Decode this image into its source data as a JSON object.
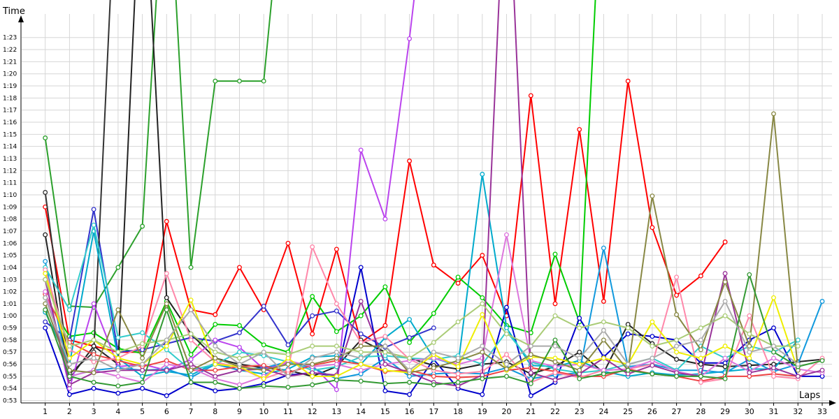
{
  "chart_data": {
    "type": "line",
    "xlabel": "Laps",
    "ylabel": "Time",
    "x_ticks": [
      "1",
      "2",
      "3",
      "4",
      "5",
      "6",
      "7",
      "8",
      "9",
      "10",
      "11",
      "12",
      "13",
      "14",
      "15",
      "16",
      "17",
      "18",
      "19",
      "20",
      "21",
      "22",
      "23",
      "24",
      "25",
      "26",
      "27",
      "28",
      "29",
      "30",
      "31",
      "32",
      "33"
    ],
    "y_ticks": [
      {
        "label": "0:53",
        "value": 53
      },
      {
        "label": "0:54",
        "value": 54
      },
      {
        "label": "0:55",
        "value": 55
      },
      {
        "label": "0:56",
        "value": 56
      },
      {
        "label": "0:57",
        "value": 57
      },
      {
        "label": "0:58",
        "value": 58
      },
      {
        "label": "0:59",
        "value": 59
      },
      {
        "label": "1:00",
        "value": 60
      },
      {
        "label": "1:01",
        "value": 61
      },
      {
        "label": "1:02",
        "value": 62
      },
      {
        "label": "1:03",
        "value": 63
      },
      {
        "label": "1:04",
        "value": 64
      },
      {
        "label": "1:05",
        "value": 65
      },
      {
        "label": "1:06",
        "value": 66
      },
      {
        "label": "1:07",
        "value": 67
      },
      {
        "label": "1:08",
        "value": 68
      },
      {
        "label": "1:09",
        "value": 69
      },
      {
        "label": "1:10",
        "value": 70
      },
      {
        "label": "1:11",
        "value": 71
      },
      {
        "label": "1:12",
        "value": 72
      },
      {
        "label": "1:13",
        "value": 73
      },
      {
        "label": "1:14",
        "value": 74
      },
      {
        "label": "1:15",
        "value": 75
      },
      {
        "label": "1:16",
        "value": 76
      },
      {
        "label": "1:17",
        "value": 77
      },
      {
        "label": "1:18",
        "value": 78
      },
      {
        "label": "1:19",
        "value": 79
      },
      {
        "label": "1:20",
        "value": 80
      },
      {
        "label": "1:21",
        "value": 81
      },
      {
        "label": "1:22",
        "value": 82
      },
      {
        "label": "1:23",
        "value": 83
      }
    ],
    "xlim": [
      0.03,
      33
    ],
    "ylim": [
      52.8,
      86.1
    ],
    "grid": true,
    "series": [
      {
        "color": "#ff0000",
        "values": [
          69.0,
          58.0,
          57.5,
          57.0,
          57.0,
          67.8,
          60.5,
          60.1,
          64.0,
          60.5,
          66.0,
          58.5,
          65.5,
          57.8,
          59.2,
          72.8,
          64.2,
          62.7,
          65.0,
          60.0,
          78.2,
          61.0,
          75.4,
          61.2,
          79.4,
          67.3,
          61.7,
          63.3,
          66.1,
          null,
          null,
          null,
          null
        ]
      },
      {
        "color": "#2ca02c",
        "values": [
          74.7,
          60.8,
          60.7,
          64.0,
          67.4,
          100,
          64.0,
          79.4,
          79.4,
          79.4,
          100,
          null,
          null,
          null,
          null,
          null,
          null,
          null,
          null,
          null,
          null,
          null,
          null,
          null,
          null,
          null,
          null,
          null,
          null,
          null,
          null,
          null,
          null
        ]
      },
      {
        "color": "#00cc00",
        "values": [
          61.5,
          58.3,
          58.6,
          57.3,
          56.9,
          61.2,
          56.8,
          59.3,
          59.2,
          57.6,
          57.0,
          61.6,
          58.7,
          60.0,
          62.4,
          57.8,
          60.2,
          63.2,
          61.5,
          59.2,
          58.6,
          65.1,
          59.5,
          100,
          null,
          null,
          null,
          null,
          null,
          null,
          null,
          null,
          null
        ]
      },
      {
        "color": "#3333cc",
        "values": [
          59.5,
          58.0,
          68.8,
          57.0,
          57.2,
          57.7,
          58.2,
          57.9,
          58.6,
          60.8,
          57.6,
          60.0,
          60.4,
          58.5,
          57.4,
          58.2,
          59.0,
          null,
          null,
          null,
          null,
          null,
          null,
          null,
          null,
          null,
          null,
          null,
          null,
          null,
          null,
          null,
          null
        ]
      },
      {
        "color": "#0000cc",
        "values": [
          59.0,
          53.5,
          54.0,
          53.6,
          54.0,
          53.4,
          54.5,
          53.8,
          54.0,
          54.4,
          55.1,
          55.3,
          55.0,
          64.0,
          53.8,
          53.5,
          56.4,
          54.0,
          53.5,
          60.7,
          53.4,
          54.5,
          59.8,
          56.6,
          58.5,
          58.3,
          58.0,
          56.1,
          56.1,
          58.0,
          59.0,
          55.0,
          55.0
        ]
      },
      {
        "color": "#333333",
        "values": [
          70.2,
          55.2,
          57.0,
          100,
          null,
          null,
          null,
          null,
          null,
          null,
          null,
          null,
          null,
          null,
          null,
          null,
          null,
          null,
          null,
          null,
          null,
          null,
          null,
          null,
          null,
          null,
          null,
          null,
          null,
          null,
          null,
          null,
          null
        ]
      },
      {
        "color": "#222222",
        "values": [
          66.7,
          54.8,
          57.5,
          56.0,
          100,
          61.5,
          58.5,
          56.5,
          56.0,
          55.7,
          55.5,
          55.0,
          55.8,
          58.0,
          57.0,
          56.5,
          55.9,
          55.6,
          56.0,
          56.2,
          55.2,
          55.8,
          57.0,
          55.3,
          59.3,
          57.7,
          56.4,
          56.0,
          55.8,
          55.9,
          56.0,
          56.2,
          56.4
        ]
      },
      {
        "color": "#bb44ee",
        "values": [
          63.0,
          54.0,
          61.0,
          55.8,
          56.0,
          55.5,
          56.4,
          58.0,
          57.4,
          55.6,
          56.1,
          55.9,
          53.9,
          73.7,
          68.0,
          82.9,
          100,
          null,
          null,
          null,
          null,
          null,
          null,
          null,
          null,
          null,
          null,
          null,
          null,
          null,
          null,
          null,
          null
        ]
      },
      {
        "color": "#00aacc",
        "values": [
          60.3,
          56.0,
          67.0,
          56.5,
          55.0,
          55.4,
          55.1,
          56.1,
          55.5,
          55.2,
          55.6,
          56.6,
          56.7,
          56.0,
          58.2,
          59.7,
          56.5,
          55.9,
          71.7,
          59.0,
          55.9,
          55.8,
          56.3,
          55.4,
          55.0,
          55.3,
          55.1,
          55.2,
          55.4,
          55.6,
          55.6,
          58.0,
          null
        ]
      },
      {
        "color": "#1199dd",
        "values": [
          64.5,
          55.0,
          55.5,
          55.7,
          55.5,
          55.6,
          54.9,
          56.0,
          55.5,
          55.7,
          56.2,
          55.7,
          54.8,
          55.2,
          56.5,
          55.0,
          55.2,
          55.3,
          55.2,
          55.7,
          54.8,
          55.1,
          55.3,
          65.6,
          55.8,
          56.0,
          55.5,
          55.5,
          55.3,
          56.4,
          55.4,
          56.0,
          61.2
        ]
      },
      {
        "color": "#33cccc",
        "values": [
          64.0,
          60.5,
          67.5,
          58.2,
          58.6,
          57.2,
          55.5,
          56.0,
          57.0,
          56.7,
          56.2,
          55.5,
          55.8,
          56.6,
          56.7,
          56.5,
          56.4,
          56.7,
          56.0,
          58.7,
          56.2,
          55.6,
          55.3,
          55.5,
          56.0,
          56.5,
          55.5,
          57.5,
          56.5,
          57.5,
          57.0,
          58.0,
          null
        ]
      },
      {
        "color": "#ee4444",
        "values": [
          61.8,
          57.8,
          56.8,
          56.3,
          55.8,
          56.3,
          55.5,
          55.5,
          55.8,
          55.9,
          55.3,
          55.9,
          56.3,
          56.0,
          55.4,
          55.5,
          55.0,
          54.9,
          55.0,
          55.5,
          55.7,
          55.4,
          55.0,
          55.0,
          55.6,
          55.2,
          55.0,
          54.6,
          55.0,
          55.0,
          55.2,
          55.0,
          null
        ]
      },
      {
        "color": "#ff88aa",
        "values": [
          63.8,
          57.2,
          56.2,
          56.5,
          57.5,
          63.5,
          58.0,
          56.2,
          55.7,
          54.8,
          55.5,
          65.7,
          61.0,
          57.8,
          58.3,
          56.4,
          55.5,
          55.2,
          55.4,
          56.8,
          54.5,
          55.3,
          54.9,
          55.5,
          55.6,
          56.0,
          63.2,
          54.5,
          54.8,
          60.0,
          55.0,
          54.8,
          56.5
        ]
      },
      {
        "color": "#dd77dd",
        "values": [
          62.0,
          55.0,
          55.5,
          55.0,
          54.5,
          56.0,
          55.7,
          54.8,
          54.3,
          55.0,
          56.3,
          55.8,
          56.0,
          55.5,
          56.0,
          56.3,
          56.5,
          56.0,
          56.5,
          66.7,
          56.3,
          55.8,
          56.0,
          55.5,
          55.6,
          56.3,
          55.4,
          55.0,
          56.5,
          55.4,
          56.5,
          55.6,
          55.3
        ]
      },
      {
        "color": "#993399",
        "values": [
          63.0,
          54.3,
          55.3,
          55.5,
          55.5,
          55.5,
          56.0,
          55.0,
          55.5,
          55.6,
          55.0,
          55.3,
          55.1,
          61.2,
          56.0,
          55.3,
          54.5,
          54.2,
          55.1,
          100,
          55.3,
          54.7,
          55.2,
          56.5,
          55.2,
          55.9,
          55.3,
          55.0,
          63.5,
          55.3,
          55.7,
          55.0,
          55.5
        ]
      },
      {
        "color": "#eeee00",
        "values": [
          63.5,
          56.5,
          58.0,
          56.5,
          56.0,
          57.5,
          61.3,
          56.0,
          55.8,
          54.8,
          56.5,
          55.0,
          55.0,
          56.0,
          55.5,
          55.3,
          56.8,
          55.8,
          60.1,
          55.5,
          56.6,
          56.5,
          56.0,
          56.5,
          56.0,
          59.5,
          57.0,
          56.5,
          57.5,
          56.5,
          61.5,
          55.5,
          null
        ]
      },
      {
        "color": "#888844",
        "values": [
          61.0,
          55.5,
          55.3,
          60.5,
          56.5,
          61.0,
          55.5,
          56.5,
          55.8,
          55.5,
          56.0,
          56.0,
          56.5,
          57.5,
          57.5,
          55.3,
          55.7,
          56.3,
          57.0,
          55.6,
          56.8,
          56.2,
          55.5,
          58.0,
          55.5,
          69.9,
          60.1,
          57.2,
          62.8,
          57.5,
          76.7,
          55.5,
          null
        ]
      },
      {
        "color": "#aacc77",
        "values": [
          63.0,
          57.5,
          58.0,
          57.0,
          57.7,
          58.0,
          58.5,
          57.0,
          56.5,
          57.0,
          56.8,
          57.5,
          57.5,
          57.0,
          57.0,
          56.5,
          57.8,
          59.5,
          61.0,
          58.5,
          57.5,
          60.0,
          59.0,
          59.5,
          59.0,
          57.5,
          58.0,
          59.0,
          60.0,
          58.5,
          57.5,
          57.5,
          null
        ]
      },
      {
        "color": "#339933",
        "values": [
          60.5,
          55.0,
          54.5,
          54.2,
          54.5,
          60.5,
          54.5,
          54.5,
          54.0,
          54.2,
          54.1,
          54.3,
          54.7,
          54.6,
          54.4,
          54.5,
          54.3,
          54.5,
          54.8,
          55.0,
          54.4,
          58.0,
          54.8,
          55.2,
          55.5,
          55.2,
          55.0,
          55.0,
          54.8,
          63.4,
          57.0,
          55.8,
          56.3
        ]
      },
      {
        "color": "#aaaaaa",
        "values": [
          61.5,
          56.0,
          56.5,
          55.5,
          56.0,
          58.0,
          60.5,
          57.5,
          56.0,
          57.0,
          55.0,
          56.5,
          57.0,
          56.5,
          57.5,
          55.5,
          57.0,
          56.5,
          57.5,
          56.0,
          57.5,
          57.5,
          56.5,
          58.8,
          56.0,
          56.5,
          57.5,
          58.0,
          61.2,
          57.0,
          57.5,
          56.0,
          null
        ]
      }
    ]
  }
}
